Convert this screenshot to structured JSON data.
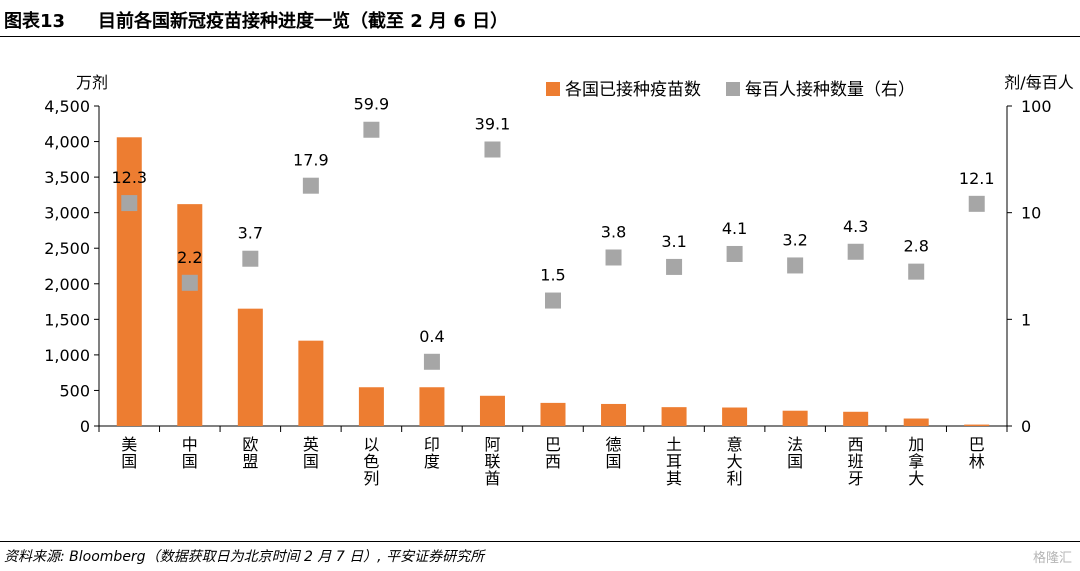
{
  "header": {
    "figure_number": "图表13",
    "title": "目前各国新冠疫苗接种进度一览（截至 2 月 6 日）"
  },
  "footer": {
    "source": "资料来源: Bloomberg（数据获取日为北京时间 2 月 7 日）, 平安证券研究所",
    "watermark": "格隆汇"
  },
  "chart_data": {
    "type": "bar",
    "categories": [
      "美国",
      "中国",
      "欧盟",
      "英国",
      "以色列",
      "印度",
      "阿联酋",
      "巴西",
      "德国",
      "土耳其",
      "意大利",
      "法国",
      "西班牙",
      "加拿大",
      "巴林"
    ],
    "series": [
      {
        "name": "各国已接种疫苗数",
        "type": "bar",
        "axis": "left",
        "color": "#ED7D31",
        "values": [
          4060,
          3120,
          1650,
          1200,
          545,
          545,
          425,
          325,
          310,
          265,
          260,
          215,
          200,
          105,
          20
        ]
      },
      {
        "name": "每百人接种数量（右）",
        "type": "scatter",
        "axis": "right",
        "color": "#A6A6A6",
        "values": [
          12.3,
          2.2,
          3.7,
          17.9,
          59.9,
          0.4,
          39.1,
          1.5,
          3.8,
          3.1,
          4.1,
          3.2,
          4.3,
          2.8,
          12.1
        ],
        "labels": [
          "12.3",
          "2.2",
          "3.7",
          "17.9",
          "59.9",
          "0.4",
          "39.1",
          "1.5",
          "3.8",
          "3.1",
          "4.1",
          "3.2",
          "4.3",
          "2.8",
          "12.1"
        ]
      }
    ],
    "left_axis": {
      "unit": "万剂",
      "ylim": [
        0,
        4500
      ],
      "ticks": [
        0,
        500,
        1000,
        1500,
        2000,
        2500,
        3000,
        3500,
        4000,
        4500
      ],
      "tick_labels": [
        "0",
        "500",
        "1,000",
        "1,500",
        "2,000",
        "2,500",
        "3,000",
        "3,500",
        "4,000",
        "4,500"
      ]
    },
    "right_axis": {
      "unit": "剂/每百人",
      "scale": "log",
      "ylim": [
        0.1,
        100
      ],
      "ticks": [
        0.1,
        1,
        10,
        100
      ],
      "tick_labels": [
        "0",
        "1",
        "10",
        "100"
      ]
    },
    "legend": "top-right",
    "grid": false
  }
}
